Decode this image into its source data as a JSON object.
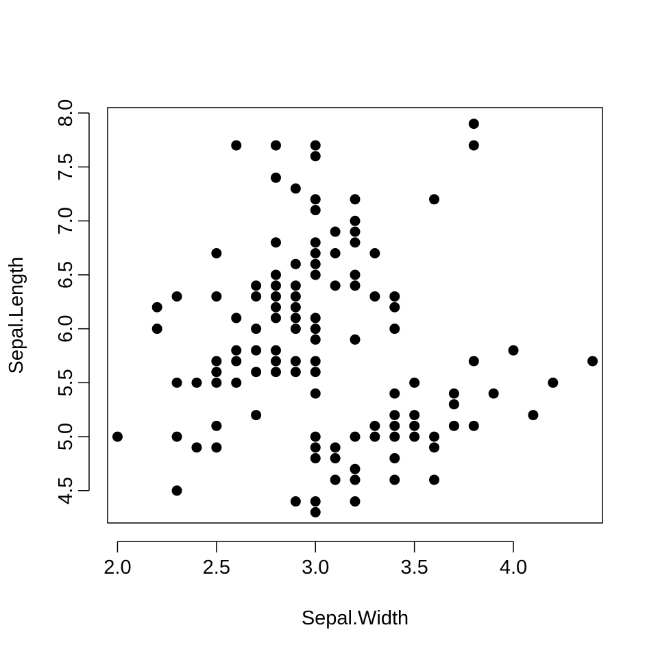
{
  "chart_data": {
    "type": "scatter",
    "title": "",
    "xlabel": "Sepal.Width",
    "ylabel": "Sepal.Length",
    "xlim": [
      1.95,
      4.45
    ],
    "ylim": [
      4.2,
      8.05
    ],
    "xticks": [
      2.0,
      2.5,
      3.0,
      3.5,
      4.0
    ],
    "xtick_labels": [
      "2.0",
      "2.5",
      "3.0",
      "3.5",
      "4.0"
    ],
    "yticks": [
      4.5,
      5.0,
      5.5,
      6.0,
      6.5,
      7.0,
      7.5,
      8.0
    ],
    "ytick_labels": [
      "4.5",
      "5.0",
      "5.5",
      "6.0",
      "6.5",
      "7.0",
      "7.5",
      "8.0"
    ],
    "grid": false,
    "marker": "filled-circle",
    "color": "#000000",
    "points": [
      [
        2.0,
        5.0
      ],
      [
        2.2,
        6.0
      ],
      [
        2.2,
        6.2
      ],
      [
        2.3,
        4.5
      ],
      [
        2.3,
        5.0
      ],
      [
        2.3,
        5.5
      ],
      [
        2.3,
        6.3
      ],
      [
        2.4,
        4.9
      ],
      [
        2.4,
        5.5
      ],
      [
        2.5,
        4.9
      ],
      [
        2.5,
        5.1
      ],
      [
        2.5,
        5.5
      ],
      [
        2.5,
        5.6
      ],
      [
        2.5,
        5.7
      ],
      [
        2.5,
        6.3
      ],
      [
        2.5,
        6.7
      ],
      [
        2.6,
        5.5
      ],
      [
        2.6,
        5.7
      ],
      [
        2.6,
        5.8
      ],
      [
        2.6,
        6.1
      ],
      [
        2.6,
        7.7
      ],
      [
        2.7,
        5.2
      ],
      [
        2.7,
        5.6
      ],
      [
        2.7,
        5.8
      ],
      [
        2.7,
        6.0
      ],
      [
        2.7,
        6.3
      ],
      [
        2.7,
        6.4
      ],
      [
        2.8,
        5.6
      ],
      [
        2.8,
        5.7
      ],
      [
        2.8,
        5.8
      ],
      [
        2.8,
        6.1
      ],
      [
        2.8,
        6.2
      ],
      [
        2.8,
        6.3
      ],
      [
        2.8,
        6.4
      ],
      [
        2.8,
        6.5
      ],
      [
        2.8,
        6.8
      ],
      [
        2.8,
        7.4
      ],
      [
        2.8,
        7.7
      ],
      [
        2.9,
        4.4
      ],
      [
        2.9,
        5.6
      ],
      [
        2.9,
        5.7
      ],
      [
        2.9,
        6.0
      ],
      [
        2.9,
        6.1
      ],
      [
        2.9,
        6.2
      ],
      [
        2.9,
        6.3
      ],
      [
        2.9,
        6.4
      ],
      [
        2.9,
        6.6
      ],
      [
        2.9,
        7.3
      ],
      [
        3.0,
        4.3
      ],
      [
        3.0,
        4.4
      ],
      [
        3.0,
        4.8
      ],
      [
        3.0,
        4.9
      ],
      [
        3.0,
        5.0
      ],
      [
        3.0,
        5.4
      ],
      [
        3.0,
        5.6
      ],
      [
        3.0,
        5.7
      ],
      [
        3.0,
        5.9
      ],
      [
        3.0,
        6.0
      ],
      [
        3.0,
        6.1
      ],
      [
        3.0,
        6.5
      ],
      [
        3.0,
        6.6
      ],
      [
        3.0,
        6.7
      ],
      [
        3.0,
        6.8
      ],
      [
        3.0,
        7.1
      ],
      [
        3.0,
        7.2
      ],
      [
        3.0,
        7.6
      ],
      [
        3.0,
        7.7
      ],
      [
        3.1,
        4.6
      ],
      [
        3.1,
        4.8
      ],
      [
        3.1,
        4.9
      ],
      [
        3.1,
        6.4
      ],
      [
        3.1,
        6.7
      ],
      [
        3.1,
        6.9
      ],
      [
        3.2,
        4.4
      ],
      [
        3.2,
        4.6
      ],
      [
        3.2,
        4.7
      ],
      [
        3.2,
        5.0
      ],
      [
        3.2,
        5.9
      ],
      [
        3.2,
        6.4
      ],
      [
        3.2,
        6.5
      ],
      [
        3.2,
        6.8
      ],
      [
        3.2,
        6.9
      ],
      [
        3.2,
        7.0
      ],
      [
        3.2,
        7.2
      ],
      [
        3.3,
        5.0
      ],
      [
        3.3,
        5.1
      ],
      [
        3.3,
        6.3
      ],
      [
        3.3,
        6.7
      ],
      [
        3.4,
        4.6
      ],
      [
        3.4,
        4.8
      ],
      [
        3.4,
        5.0
      ],
      [
        3.4,
        5.1
      ],
      [
        3.4,
        5.2
      ],
      [
        3.4,
        5.4
      ],
      [
        3.4,
        6.0
      ],
      [
        3.4,
        6.2
      ],
      [
        3.4,
        6.3
      ],
      [
        3.5,
        5.0
      ],
      [
        3.5,
        5.1
      ],
      [
        3.5,
        5.2
      ],
      [
        3.5,
        5.5
      ],
      [
        3.6,
        4.6
      ],
      [
        3.6,
        4.9
      ],
      [
        3.6,
        5.0
      ],
      [
        3.6,
        7.2
      ],
      [
        3.7,
        5.1
      ],
      [
        3.7,
        5.3
      ],
      [
        3.7,
        5.4
      ],
      [
        3.8,
        5.1
      ],
      [
        3.8,
        5.7
      ],
      [
        3.8,
        7.7
      ],
      [
        3.8,
        7.9
      ],
      [
        3.9,
        5.4
      ],
      [
        4.0,
        5.8
      ],
      [
        4.1,
        5.2
      ],
      [
        4.2,
        5.5
      ],
      [
        4.4,
        5.7
      ]
    ]
  }
}
